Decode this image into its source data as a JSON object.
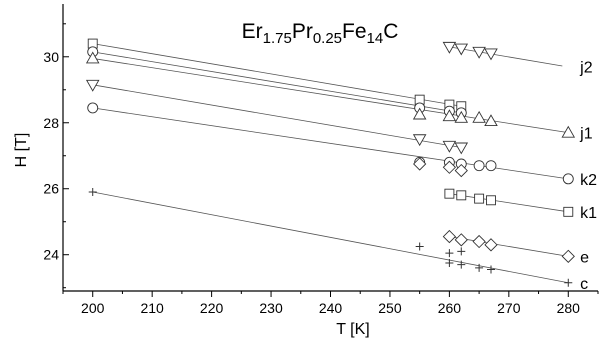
{
  "chart_data": {
    "type": "scatter",
    "title": {
      "parts": [
        {
          "text": "Er",
          "sub": false
        },
        {
          "text": "1.75",
          "sub": true
        },
        {
          "text": "Pr",
          "sub": false
        },
        {
          "text": "0.25",
          "sub": true
        },
        {
          "text": "Fe",
          "sub": false
        },
        {
          "text": "14",
          "sub": true
        },
        {
          "text": "C",
          "sub": false
        }
      ]
    },
    "xlabel": "T [K]",
    "ylabel": "H [T]",
    "xlim": [
      195,
      285
    ],
    "ylim": [
      22.9,
      31.6
    ],
    "xticks": [
      200,
      210,
      220,
      230,
      240,
      250,
      260,
      270,
      280
    ],
    "yticks": [
      24,
      26,
      28,
      30
    ],
    "series": [
      {
        "name": "j2",
        "marker": "triangle-down",
        "points": [
          [
            260,
            30.3
          ],
          [
            262,
            30.25
          ],
          [
            265,
            30.15
          ],
          [
            267,
            30.1
          ]
        ],
        "fit": [
          [
            260,
            30.3
          ],
          [
            279,
            29.72
          ]
        ]
      },
      {
        "marker": "square",
        "points": [
          [
            200,
            30.4
          ],
          [
            255,
            28.7
          ],
          [
            260,
            28.55
          ],
          [
            262,
            28.5
          ]
        ],
        "fit": [
          [
            200,
            30.4
          ],
          [
            262,
            28.5
          ]
        ]
      },
      {
        "marker": "circle",
        "points": [
          [
            200,
            30.15
          ],
          [
            255,
            28.45
          ],
          [
            260,
            28.35
          ],
          [
            262,
            28.3
          ]
        ],
        "fit": [
          [
            200,
            30.15
          ],
          [
            262,
            28.3
          ]
        ]
      },
      {
        "name": "j1",
        "marker": "triangle-up",
        "points": [
          [
            200,
            29.95
          ],
          [
            255,
            28.25
          ],
          [
            260,
            28.2
          ],
          [
            262,
            28.15
          ],
          [
            265,
            28.15
          ],
          [
            267,
            28.05
          ],
          [
            280,
            27.7
          ]
        ],
        "fit": [
          [
            200,
            29.95
          ],
          [
            280,
            27.7
          ]
        ]
      },
      {
        "marker": "triangle-down",
        "points": [
          [
            200,
            29.15
          ],
          [
            255,
            27.5
          ],
          [
            260,
            27.3
          ],
          [
            262,
            27.25
          ]
        ],
        "fit": [
          [
            200,
            29.15
          ],
          [
            262,
            27.25
          ]
        ]
      },
      {
        "name": "k2",
        "marker": "circle",
        "points": [
          [
            200,
            28.45
          ],
          [
            255,
            26.8
          ],
          [
            260,
            26.8
          ],
          [
            262,
            26.75
          ],
          [
            265,
            26.7
          ],
          [
            267,
            26.7
          ],
          [
            280,
            26.3
          ]
        ],
        "fit": [
          [
            200,
            28.45
          ],
          [
            280,
            26.3
          ]
        ]
      },
      {
        "marker": "diamond",
        "points": [
          [
            255,
            26.75
          ],
          [
            260,
            26.65
          ],
          [
            262,
            26.55
          ]
        ],
        "fit": null
      },
      {
        "name": "k1",
        "marker": "square",
        "points": [
          [
            260,
            25.85
          ],
          [
            262,
            25.8
          ],
          [
            265,
            25.7
          ],
          [
            267,
            25.65
          ],
          [
            280,
            25.3
          ]
        ],
        "fit": [
          [
            260,
            25.85
          ],
          [
            280,
            25.3
          ]
        ]
      },
      {
        "name": "e",
        "marker": "diamond",
        "points": [
          [
            260,
            24.55
          ],
          [
            262,
            24.45
          ],
          [
            265,
            24.4
          ],
          [
            267,
            24.3
          ],
          [
            280,
            23.95
          ]
        ],
        "fit": [
          [
            260,
            24.55
          ],
          [
            280,
            23.95
          ]
        ]
      },
      {
        "name": "c",
        "marker": "plus",
        "points": [
          [
            200,
            25.9
          ],
          [
            255,
            24.25
          ],
          [
            260,
            24.05
          ],
          [
            262,
            24.1
          ],
          [
            260,
            23.75
          ],
          [
            262,
            23.7
          ],
          [
            265,
            23.6
          ],
          [
            267,
            23.55
          ],
          [
            280,
            23.15
          ]
        ],
        "fit": [
          [
            200,
            25.9
          ],
          [
            280,
            23.15
          ]
        ]
      }
    ],
    "series_labels": [
      {
        "text": "j2",
        "y": 29.7
      },
      {
        "text": "j1",
        "y": 27.7
      },
      {
        "text": "k2",
        "y": 26.3
      },
      {
        "text": "k1",
        "y": 25.3
      },
      {
        "text": "e",
        "y": 23.95
      },
      {
        "text": "c",
        "y": 23.15
      }
    ],
    "grid": false,
    "legend": "none"
  }
}
